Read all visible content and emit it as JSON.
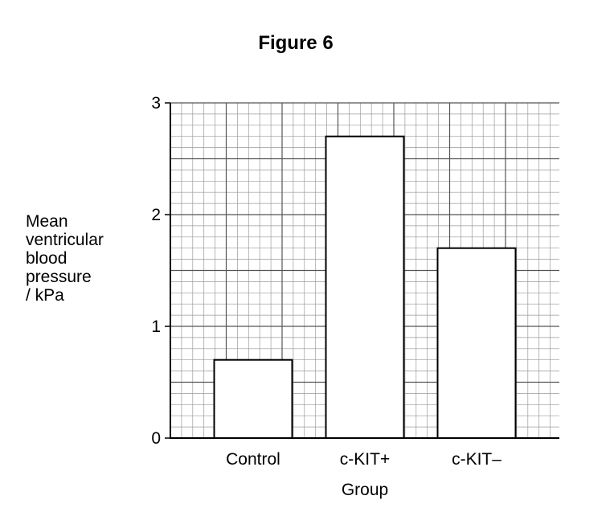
{
  "figure_label": "Figure 6",
  "chart_data": {
    "type": "bar",
    "categories": [
      "Control",
      "c-KIT+",
      "c-KIT–"
    ],
    "values": [
      0.7,
      2.7,
      1.7
    ],
    "xlabel": "Group",
    "ylabel_lines": [
      "Mean",
      "ventricular",
      "blood",
      "pressure",
      "/ kPa"
    ],
    "ylim": [
      0,
      3
    ],
    "yticks": [
      "0",
      "1",
      "2",
      "3"
    ],
    "grid": true,
    "grid_minor_step": 0.1,
    "bar_fill": "#ffffff",
    "bar_stroke": "#000000"
  }
}
